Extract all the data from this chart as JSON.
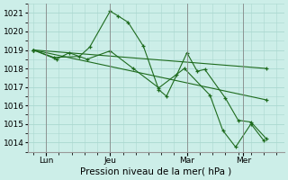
{
  "background_color": "#cceee8",
  "grid_color": "#aad8d0",
  "line_color": "#1e6b1e",
  "marker_color": "#1e6b1e",
  "xlabel_text": "Pression niveau de la mer( hPa )",
  "ylim": [
    1013.5,
    1021.5
  ],
  "yticks": [
    1014,
    1015,
    1016,
    1017,
    1018,
    1019,
    1020,
    1021
  ],
  "xlim": [
    -0.2,
    9.8
  ],
  "xtick_labels": [
    "Lun",
    "Jeu",
    "Mar",
    "Mer"
  ],
  "xtick_positions": [
    0.5,
    3.0,
    6.0,
    8.2
  ],
  "vline_positions": [
    0.5,
    3.0,
    6.0,
    8.2
  ],
  "series": [
    [
      0,
      1019.0,
      0.8,
      1018.6,
      1.8,
      1018.65,
      2.2,
      1019.15,
      3.0,
      1021.1,
      3.3,
      1020.85,
      3.7,
      1020.5,
      4.3,
      1019.2,
      4.9,
      1016.85,
      5.2,
      1016.5,
      5.6,
      1017.65,
      6.0,
      1018.85,
      6.4,
      1017.85,
      6.7,
      1017.95,
      7.5,
      1016.4,
      8.0,
      1015.2,
      8.5,
      1015.1,
      9.1,
      1014.2
    ],
    [
      0,
      1019.0,
      0.9,
      1018.5,
      1.4,
      1018.85,
      2.1,
      1018.5,
      3.0,
      1018.95,
      3.9,
      1018.0,
      4.9,
      1016.95,
      5.9,
      1018.0,
      6.9,
      1016.55,
      7.4,
      1014.65,
      7.9,
      1013.75,
      8.5,
      1015.0,
      9.0,
      1014.1
    ],
    [
      0,
      1019.0,
      9.1,
      1018.0
    ],
    [
      0,
      1019.0,
      9.1,
      1016.3
    ]
  ],
  "tick_fontsize": 6.5,
  "xlabel_fontsize": 7.5
}
